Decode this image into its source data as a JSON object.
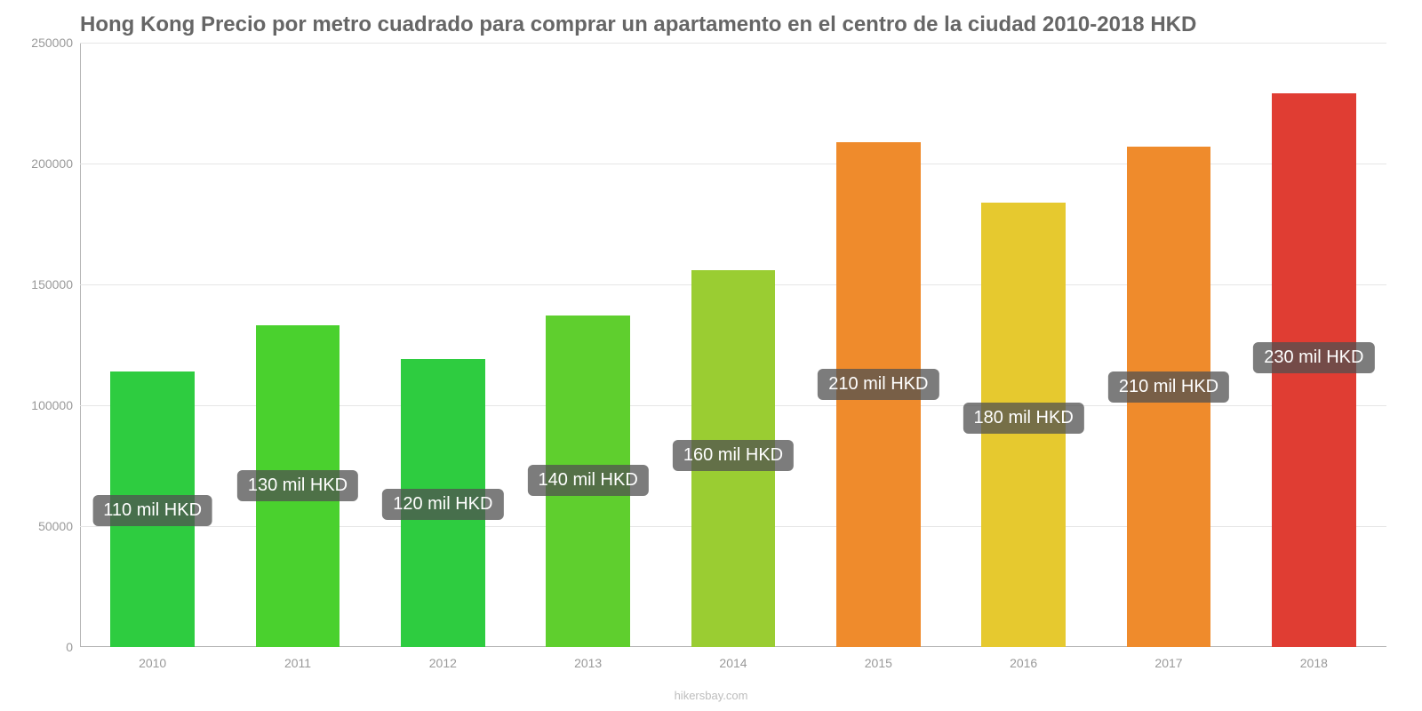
{
  "chart": {
    "type": "bar",
    "title": "Hong Kong Precio por metro cuadrado para comprar un apartamento en el centro de la ciudad 2010-2018 HKD",
    "title_fontsize": 24,
    "title_color": "#666666",
    "background_color": "#ffffff",
    "grid_color": "#e6e6e6",
    "axis_color": "#b3b3b3",
    "tick_label_color": "#999999",
    "tick_label_fontsize": 14,
    "ylim": [
      0,
      250000
    ],
    "ytick_step": 50000,
    "yticks": [
      "0",
      "50000",
      "100000",
      "150000",
      "200000",
      "250000"
    ],
    "categories": [
      "2010",
      "2011",
      "2012",
      "2013",
      "2014",
      "2015",
      "2016",
      "2017",
      "2018"
    ],
    "values": [
      114000,
      133000,
      119000,
      137000,
      156000,
      209000,
      184000,
      207000,
      229000
    ],
    "bar_colors": [
      "#2ecc40",
      "#4ad12e",
      "#2ecc40",
      "#5fcf2e",
      "#9acd32",
      "#ef8b2c",
      "#e6c92f",
      "#ef8b2c",
      "#e03d33"
    ],
    "bar_width_ratio": 0.58,
    "data_labels": [
      "110 mil HKD",
      "130 mil HKD",
      "120 mil HKD",
      "140 mil HKD",
      "160 mil HKD",
      "210 mil HKD",
      "180 mil HKD",
      "210 mil HKD",
      "230 mil HKD"
    ],
    "data_label_fontsize": 20,
    "data_label_bg": "rgba(80,80,80,0.75)",
    "data_label_color": "#ffffff",
    "attribution": "hikersbay.com",
    "attribution_color": "#bdbdbd",
    "attribution_fontsize": 13
  }
}
